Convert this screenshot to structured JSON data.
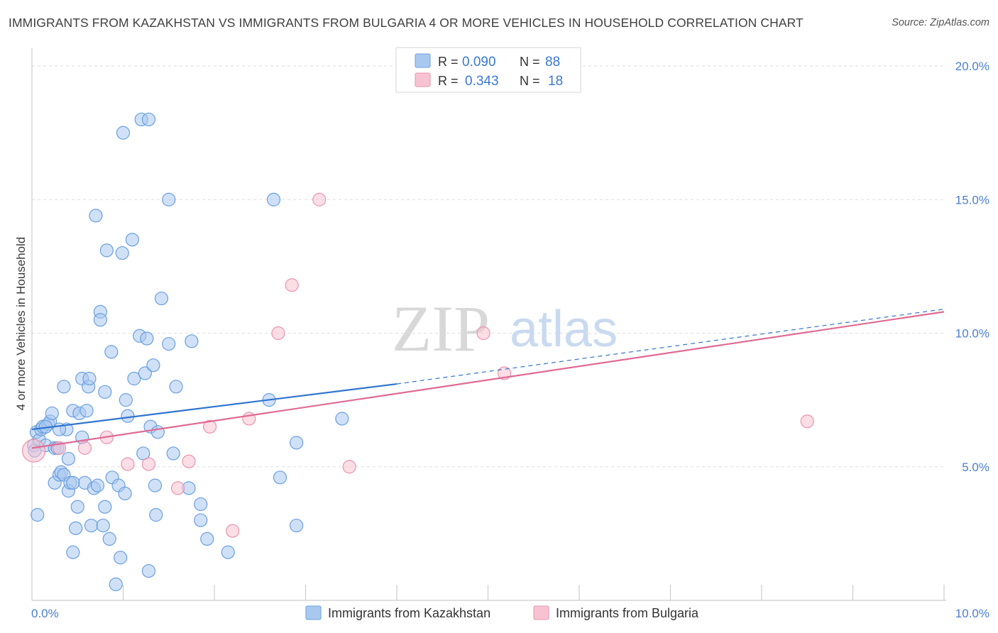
{
  "title": "IMMIGRANTS FROM KAZAKHSTAN VS IMMIGRANTS FROM BULGARIA 4 OR MORE VEHICLES IN HOUSEHOLD CORRELATION CHART",
  "source": "Source: ZipAtlas.com",
  "watermark": {
    "zip": "ZIP",
    "atlas": "atlas"
  },
  "colors": {
    "kazakhstan_fill": "#a9c8f0",
    "kazakhstan_stroke": "#6a9fe0",
    "kazakhstan_line": "#2f74d0",
    "bulgaria_fill": "#f7c3d2",
    "bulgaria_stroke": "#e993ad",
    "bulgaria_line": "#e06a93",
    "tick_text": "#4a7fd0",
    "grid": "#dddddd"
  },
  "legend": {
    "rows": [
      {
        "r_label": "R =",
        "r_value": "0.090",
        "n_label": "N =",
        "n_value": "88"
      },
      {
        "r_label": "R =",
        "r_value": "0.343",
        "n_label": "N =",
        "n_value": "18"
      }
    ]
  },
  "chart_data": {
    "type": "scatter",
    "title": "IMMIGRANTS FROM KAZAKHSTAN VS IMMIGRANTS FROM BULGARIA 4 OR MORE VEHICLES IN HOUSEHOLD CORRELATION CHART",
    "xlabel": "",
    "ylabel": "4 or more Vehicles in Household",
    "xlim": [
      0,
      10
    ],
    "ylim": [
      0,
      20
    ],
    "x_tick_labels": [
      "0.0%",
      "10.0%"
    ],
    "y_tick_labels": [
      "5.0%",
      "10.0%",
      "15.0%",
      "20.0%"
    ],
    "y_ticks": [
      5,
      10,
      15,
      20
    ],
    "grid": true,
    "legend_position": "top-center",
    "series": [
      {
        "name": "Immigrants from Kazakhstan",
        "r": 0.09,
        "n": 88,
        "trend": {
          "x0": 0,
          "y0": 6.4,
          "x1": 4.0,
          "y1": 8.1,
          "dashed_to_x": 10,
          "dashed_to_y": 10.9
        },
        "points": [
          [
            0.02,
            5.8
          ],
          [
            0.03,
            5.6
          ],
          [
            0.05,
            6.3
          ],
          [
            0.06,
            3.2
          ],
          [
            0.08,
            6.0
          ],
          [
            0.1,
            6.4
          ],
          [
            0.12,
            6.5
          ],
          [
            0.15,
            5.8
          ],
          [
            0.18,
            6.6
          ],
          [
            0.2,
            6.7
          ],
          [
            0.22,
            7.0
          ],
          [
            0.25,
            4.4
          ],
          [
            0.25,
            5.7
          ],
          [
            0.28,
            5.7
          ],
          [
            0.3,
            4.7
          ],
          [
            0.32,
            4.8
          ],
          [
            0.35,
            8.0
          ],
          [
            0.35,
            4.7
          ],
          [
            0.38,
            6.4
          ],
          [
            0.4,
            4.1
          ],
          [
            0.4,
            5.3
          ],
          [
            0.42,
            4.4
          ],
          [
            0.45,
            1.8
          ],
          [
            0.45,
            7.1
          ],
          [
            0.48,
            2.7
          ],
          [
            0.5,
            3.5
          ],
          [
            0.52,
            7.0
          ],
          [
            0.55,
            6.1
          ],
          [
            0.55,
            8.3
          ],
          [
            0.58,
            4.4
          ],
          [
            0.6,
            7.1
          ],
          [
            0.62,
            8.0
          ],
          [
            0.63,
            8.3
          ],
          [
            0.65,
            2.8
          ],
          [
            0.68,
            4.2
          ],
          [
            0.7,
            14.4
          ],
          [
            0.72,
            4.3
          ],
          [
            0.75,
            10.8
          ],
          [
            0.75,
            10.5
          ],
          [
            0.78,
            2.8
          ],
          [
            0.8,
            3.5
          ],
          [
            0.8,
            7.8
          ],
          [
            0.82,
            13.1
          ],
          [
            0.85,
            2.3
          ],
          [
            0.87,
            9.3
          ],
          [
            0.88,
            4.6
          ],
          [
            0.92,
            0.6
          ],
          [
            0.95,
            4.3
          ],
          [
            0.97,
            1.6
          ],
          [
            0.99,
            13.0
          ],
          [
            1.0,
            17.5
          ],
          [
            1.02,
            4.0
          ],
          [
            1.03,
            7.5
          ],
          [
            1.05,
            6.9
          ],
          [
            1.1,
            13.5
          ],
          [
            1.12,
            8.3
          ],
          [
            1.18,
            9.9
          ],
          [
            1.2,
            18.0
          ],
          [
            1.22,
            5.5
          ],
          [
            1.24,
            8.5
          ],
          [
            1.26,
            9.8
          ],
          [
            1.28,
            18.0
          ],
          [
            1.28,
            1.1
          ],
          [
            1.3,
            6.5
          ],
          [
            1.33,
            8.8
          ],
          [
            1.35,
            4.3
          ],
          [
            1.36,
            3.2
          ],
          [
            1.38,
            6.3
          ],
          [
            1.42,
            11.3
          ],
          [
            1.5,
            15.0
          ],
          [
            1.5,
            9.6
          ],
          [
            1.55,
            5.5
          ],
          [
            1.58,
            8.0
          ],
          [
            1.72,
            4.2
          ],
          [
            1.75,
            9.7
          ],
          [
            1.85,
            3.6
          ],
          [
            1.85,
            3.0
          ],
          [
            1.92,
            2.3
          ],
          [
            2.15,
            1.8
          ],
          [
            2.6,
            7.5
          ],
          [
            2.65,
            15.0
          ],
          [
            2.72,
            4.6
          ],
          [
            2.9,
            2.8
          ],
          [
            2.9,
            5.9
          ],
          [
            3.4,
            6.8
          ],
          [
            0.15,
            6.5
          ],
          [
            0.3,
            6.4
          ],
          [
            0.45,
            4.4
          ]
        ]
      },
      {
        "name": "Immigrants from Bulgaria",
        "r": 0.343,
        "n": 18,
        "trend": {
          "x0": 0,
          "y0": 5.7,
          "x1": 10,
          "y1": 10.8
        },
        "points": [
          [
            0.02,
            5.6
          ],
          [
            0.3,
            5.7
          ],
          [
            0.58,
            5.7
          ],
          [
            0.82,
            6.1
          ],
          [
            1.05,
            5.1
          ],
          [
            1.28,
            5.1
          ],
          [
            1.6,
            4.2
          ],
          [
            1.72,
            5.2
          ],
          [
            1.95,
            6.5
          ],
          [
            2.2,
            2.6
          ],
          [
            2.38,
            6.8
          ],
          [
            2.7,
            10.0
          ],
          [
            2.85,
            11.8
          ],
          [
            3.15,
            15.0
          ],
          [
            3.48,
            5.0
          ],
          [
            4.95,
            10.0
          ],
          [
            5.18,
            8.5
          ],
          [
            8.5,
            6.7
          ]
        ]
      }
    ]
  },
  "bottom_legend": [
    {
      "label": "Immigrants from Kazakhstan"
    },
    {
      "label": "Immigrants from Bulgaria"
    }
  ]
}
